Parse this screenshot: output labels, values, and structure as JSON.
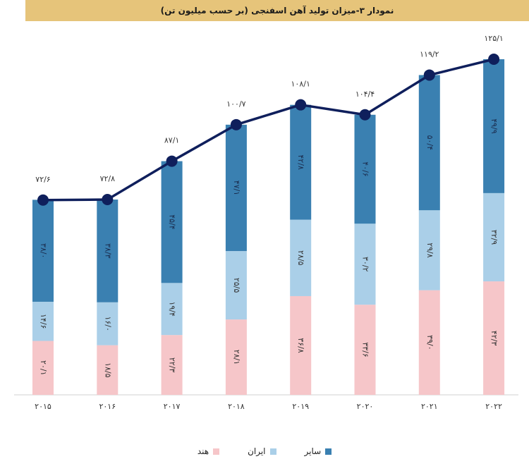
{
  "header": {
    "title": "نمودار ۳-میزان تولید آهن اسفنجی (بر حسب میلیون تن)"
  },
  "colors": {
    "title_bg": "#e6c47a",
    "hind": "#f6c6c9",
    "iran": "#aacfe8",
    "other": "#3a80b1",
    "line": "#0f1f5c"
  },
  "chart_data": {
    "type": "bar",
    "stacked": true,
    "title": "نمودار ۳-میزان تولید آهن اسفنجی (بر حسب میلیون تن)",
    "categories": [
      "۲۰۱۵",
      "۲۰۱۶",
      "۲۰۱۷",
      "۲۰۱۸",
      "۲۰۱۹",
      "۲۰۲۰",
      "۲۰۲۱",
      "۲۰۲۲"
    ],
    "series": [
      {
        "name": "هند",
        "key": "hind",
        "values": [
          20.1,
          18.5,
          22.3,
          28.1,
          36.8,
          33.6,
          39.0,
          42.3
        ],
        "labels": [
          "۲۰/۱",
          "۱۸/۵",
          "۲۲/۳",
          "۲۸/۱",
          "۳۶/۸",
          "۳۳/۶",
          "۳۹/۰",
          "۴۲/۳"
        ]
      },
      {
        "name": "ایران",
        "key": "iran",
        "values": [
          14.6,
          16.0,
          19.4,
          25.5,
          28.5,
          30.2,
          29.8,
          32.9
        ],
        "labels": [
          "۱۴/۶",
          "۱۶/۰",
          "۱۹/۴",
          "۲۵/۵",
          "۲۸/۵",
          "۳۰/۲",
          "۲۹/۸",
          "۳۲/۹"
        ]
      },
      {
        "name": "سایر",
        "key": "other",
        "values": [
          38.0,
          38.3,
          45.4,
          47.1,
          42.8,
          40.6,
          50.4,
          49.9
        ],
        "labels": [
          "۳۸/۰",
          "۳۸/۳",
          "۴۵/۴",
          "۴۷/۱",
          "۴۲/۸",
          "۴۰/۶",
          "۵۰/۴",
          "۴۹/۹"
        ]
      }
    ],
    "totals": {
      "values": [
        72.6,
        72.8,
        87.1,
        100.7,
        108.1,
        104.4,
        119.2,
        125.1
      ],
      "labels": [
        "۷۲/۶",
        "۷۲/۸",
        "۸۷/۱",
        "۱۰۰/۷",
        "۱۰۸/۱",
        "۱۰۴/۴",
        "۱۱۹/۲",
        "۱۲۵/۱"
      ]
    },
    "ylim": [
      0,
      125.1
    ],
    "grid": false,
    "legend_position": "bottom"
  }
}
